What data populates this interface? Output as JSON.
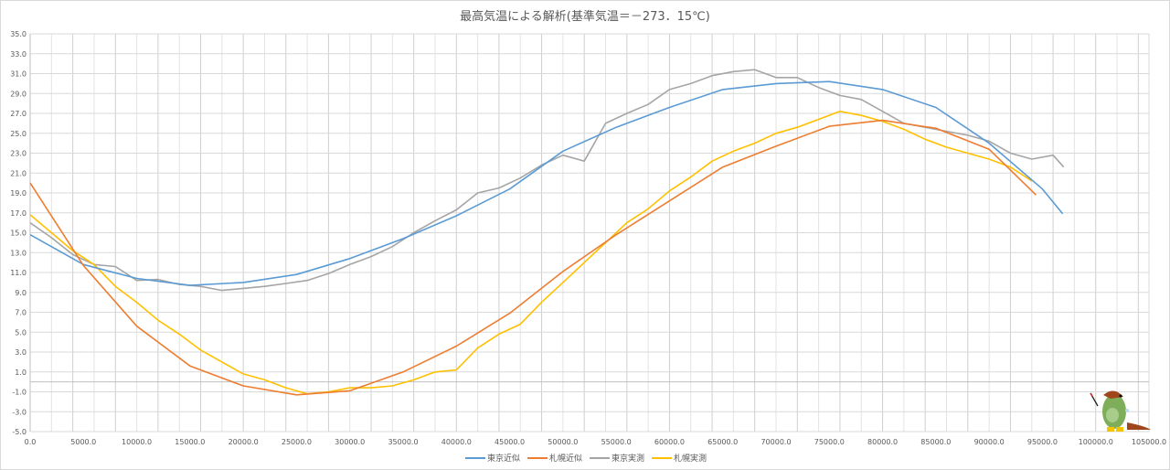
{
  "chart_data": {
    "type": "line",
    "title": "最高気温による解析(基準気温＝－273．15℃)",
    "xlabel": "",
    "ylabel": "",
    "xlim": [
      0,
      105000
    ],
    "ylim": [
      -5,
      35
    ],
    "x_ticks": [
      "0.0",
      "5000.0",
      "10000.0",
      "15000.0",
      "20000.0",
      "25000.0",
      "30000.0",
      "35000.0",
      "40000.0",
      "45000.0",
      "50000.0",
      "55000.0",
      "60000.0",
      "65000.0",
      "70000.0",
      "75000.0",
      "80000.0",
      "85000.0",
      "90000.0",
      "95000.0",
      "100000.0",
      "105000.0"
    ],
    "y_ticks": [
      "35.0",
      "33.0",
      "31.0",
      "29.0",
      "27.0",
      "25.0",
      "23.0",
      "21.0",
      "19.0",
      "17.0",
      "15.0",
      "13.0",
      "11.0",
      "9.0",
      "7.0",
      "5.0",
      "3.0",
      "1.0",
      "-1.0",
      "-3.0",
      "-5.0"
    ],
    "grid": true,
    "legend_position": "bottom",
    "series": [
      {
        "name": "東京近似",
        "color": "#5B9BD5",
        "x": [
          0,
          5000,
          10000,
          15000,
          20000,
          25000,
          30000,
          35000,
          40000,
          45000,
          50000,
          55000,
          60000,
          65000,
          70000,
          75000,
          80000,
          85000,
          90000,
          95000,
          96900
        ],
        "y": [
          14.8,
          11.8,
          10.4,
          9.7,
          10.0,
          10.8,
          12.4,
          14.4,
          16.7,
          19.4,
          23.2,
          25.6,
          27.6,
          29.4,
          30.0,
          30.2,
          29.4,
          27.6,
          24.0,
          19.4,
          16.9
        ]
      },
      {
        "name": "札幌近似",
        "color": "#ED7D31",
        "x": [
          0,
          5000,
          10000,
          15000,
          20000,
          25000,
          30000,
          35000,
          40000,
          45000,
          50000,
          55000,
          60000,
          65000,
          70000,
          75000,
          80000,
          85000,
          90000,
          94400
        ],
        "y": [
          20.0,
          11.7,
          5.6,
          1.6,
          -0.4,
          -1.3,
          -0.9,
          1.0,
          3.6,
          6.9,
          11.1,
          14.8,
          18.2,
          21.6,
          23.7,
          25.7,
          26.3,
          25.5,
          23.4,
          18.8
        ]
      },
      {
        "name": "東京実測",
        "color": "#A5A5A5",
        "x": [
          0,
          2000,
          4000,
          6000,
          8000,
          10000,
          12000,
          14000,
          16000,
          18000,
          20000,
          22000,
          24000,
          26000,
          28000,
          30000,
          32000,
          34000,
          36000,
          38000,
          40000,
          42000,
          44000,
          46000,
          48000,
          50000,
          52000,
          54000,
          56000,
          58000,
          60000,
          62000,
          64000,
          66000,
          68000,
          70000,
          72000,
          74000,
          76000,
          78000,
          80000,
          82000,
          84000,
          86000,
          88000,
          90000,
          92000,
          94000,
          96000,
          97000
        ],
        "y": [
          16.0,
          14.5,
          12.8,
          11.8,
          11.6,
          10.2,
          10.3,
          9.8,
          9.6,
          9.2,
          9.4,
          9.6,
          9.9,
          10.2,
          10.9,
          11.8,
          12.6,
          13.6,
          15.0,
          16.2,
          17.3,
          19.0,
          19.5,
          20.5,
          21.8,
          22.8,
          22.2,
          26.0,
          27.0,
          27.9,
          29.4,
          30.0,
          30.8,
          31.2,
          31.4,
          30.6,
          30.6,
          29.6,
          28.8,
          28.4,
          27.2,
          26.0,
          25.6,
          25.2,
          24.8,
          24.2,
          23.0,
          22.4,
          22.8,
          21.6
        ]
      },
      {
        "name": "札幌実測",
        "color": "#FFC000",
        "x": [
          0,
          2000,
          4000,
          6000,
          8000,
          10000,
          12000,
          14000,
          16000,
          18000,
          20000,
          22000,
          24000,
          26000,
          28000,
          30000,
          32000,
          34000,
          36000,
          38000,
          40000,
          42000,
          44000,
          46000,
          48000,
          50000,
          52000,
          54000,
          56000,
          58000,
          60000,
          62000,
          64000,
          66000,
          68000,
          70000,
          72000,
          74000,
          76000,
          78000,
          80000,
          82000,
          84000,
          86000,
          88000,
          90000,
          92000,
          94000
        ],
        "y": [
          16.8,
          15.0,
          13.2,
          11.8,
          9.6,
          8.0,
          6.2,
          4.8,
          3.2,
          2.0,
          0.8,
          0.2,
          -0.6,
          -1.2,
          -1.0,
          -0.6,
          -0.6,
          -0.4,
          0.2,
          1.0,
          1.2,
          3.4,
          4.8,
          5.8,
          8.0,
          10.0,
          12.0,
          14.0,
          16.0,
          17.4,
          19.2,
          20.6,
          22.2,
          23.2,
          24.0,
          25.0,
          25.6,
          26.4,
          27.2,
          26.8,
          26.2,
          25.4,
          24.4,
          23.6,
          23.0,
          22.4,
          21.6,
          20.2
        ]
      }
    ]
  }
}
